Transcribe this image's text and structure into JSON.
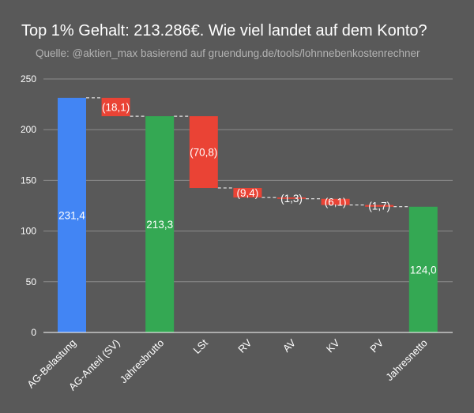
{
  "chart_data": {
    "type": "waterfall",
    "title": "Top 1% Gehalt: 213.286€. Wie viel landet auf dem Konto?",
    "subtitle": "Quelle: @aktien_max basierend auf gruendung.de/tools/lohnnebenkostenrechner",
    "xlabel": "",
    "ylabel": "",
    "ylim": [
      0,
      250
    ],
    "yticks": [
      0,
      50,
      100,
      150,
      200,
      250
    ],
    "grid": true,
    "categories": [
      "AG-Belastung",
      "AG-Anteil (SV)",
      "Jahresbrutto",
      "LSt",
      "RV",
      "AV",
      "KV",
      "PV",
      "Jahresnetto"
    ],
    "values": [
      231.4,
      -18.1,
      213.3,
      -70.8,
      -9.4,
      -1.3,
      -6.1,
      -1.7,
      124.0
    ],
    "kinds": [
      "total",
      "decrease",
      "total",
      "decrease",
      "decrease",
      "decrease",
      "decrease",
      "decrease",
      "total"
    ],
    "labels": [
      "231,4",
      "(18,1)",
      "213,3",
      "(70,8)",
      "(9,4)",
      "(1,3)",
      "(6,1)",
      "(1,7)",
      "124,0"
    ],
    "colors": {
      "total_first": "#4285f4",
      "total": "#34a853",
      "decrease": "#ea4335",
      "background": "#595959",
      "grid": "#8c8c8c",
      "connector": "#ffffff"
    }
  }
}
